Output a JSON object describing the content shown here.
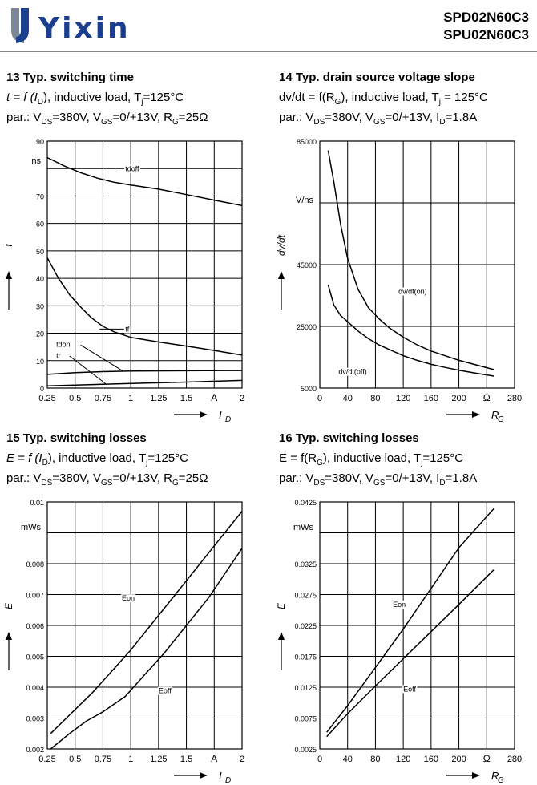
{
  "header": {
    "logo_text": "Yixin",
    "part_numbers": [
      "SPD02N60C3",
      "SPU02N60C3"
    ],
    "brand_color": "#1b3f8f"
  },
  "panels": [
    {
      "title": "13 Typ. switching time",
      "line1": "t = f (I",
      "line1_sub": "D",
      "line1_rest": "), inductive load, T",
      "line1_sub2": "j",
      "line1_end": "=125°C",
      "line2": "par.: V",
      "line2_sub": "DS",
      "line2_mid1": "=380V, V",
      "line2_sub2": "GS",
      "line2_mid2": "=0/+13V, R",
      "line2_sub3": "G",
      "line2_end": "=25Ω"
    },
    {
      "title": "14 Typ. drain source voltage slope",
      "line1": "dv/dt = f(R",
      "line1_sub": "G",
      "line1_rest": "), inductive load, T",
      "line1_sub2": "j",
      "line1_end": " = 125°C",
      "line2": "par.: V",
      "line2_sub": "DS",
      "line2_mid1": "=380V, V",
      "line2_sub2": "GS",
      "line2_mid2": "=0/+13V, I",
      "line2_sub3": "D",
      "line2_end": "=1.8A"
    },
    {
      "title": "15 Typ. switching losses",
      "line1": "E = f (I",
      "line1_sub": "D",
      "line1_rest": "), inductive load, T",
      "line1_sub2": "j",
      "line1_end": "=125°C",
      "line2": "par.: V",
      "line2_sub": "DS",
      "line2_mid1": "=380V, V",
      "line2_sub2": "GS",
      "line2_mid2": "=0/+13V, R",
      "line2_sub3": "G",
      "line2_end": "=25Ω"
    },
    {
      "title": "16 Typ. switching losses",
      "line1": "E = f(R",
      "line1_sub": "G",
      "line1_rest": "), inductive load, T",
      "line1_sub2": "j",
      "line1_end": "=125°C",
      "line2": "par.: V",
      "line2_sub": "DS",
      "line2_mid1": "=380V, V",
      "line2_sub2": "GS",
      "line2_mid2": "=0/+13V, I",
      "line2_sub3": "D",
      "line2_end": "=1.8A"
    }
  ],
  "chart_data": [
    {
      "type": "line",
      "ylabel": "t",
      "yunit": "ns",
      "xlabel": "I",
      "xlabel_sub": "D",
      "xunit": "A",
      "xlim": [
        0.25,
        2
      ],
      "ylim": [
        0,
        90
      ],
      "xticks": [
        0.25,
        0.5,
        0.75,
        1,
        1.25,
        1.5,
        2
      ],
      "xtick_labels": [
        "0.25",
        "0.5",
        "0.75",
        "1",
        "1.25",
        "1.5",
        "2"
      ],
      "xunit_at": 1.75,
      "yticks": [
        0,
        10,
        20,
        30,
        40,
        50,
        60,
        70,
        90
      ],
      "ytick_labels": [
        "0",
        "10",
        "20",
        "30",
        "40",
        "50",
        "60",
        "70",
        "90"
      ],
      "yunit_at": 83,
      "xgrid": [
        0.25,
        0.5,
        0.75,
        1,
        1.25,
        1.5,
        1.75,
        2
      ],
      "ygrid": [
        0,
        10,
        20,
        30,
        40,
        50,
        60,
        70,
        80,
        90
      ],
      "series": [
        {
          "name": "tdoff",
          "x": [
            0.25,
            0.4,
            0.55,
            0.7,
            0.85,
            1,
            1.25,
            1.5,
            1.75,
            2
          ],
          "y": [
            84,
            81,
            78.5,
            76.5,
            75,
            74,
            72.5,
            70.5,
            68.5,
            66.5
          ]
        },
        {
          "name": "tf",
          "x": [
            0.25,
            0.35,
            0.45,
            0.55,
            0.65,
            0.75,
            0.85,
            1,
            1.25,
            1.5,
            1.75,
            2
          ],
          "y": [
            47.5,
            40,
            34,
            29.5,
            25.5,
            22.5,
            20.5,
            18.5,
            16.8,
            15.3,
            13.7,
            12
          ]
        },
        {
          "name": "tdon",
          "x": [
            0.25,
            0.5,
            0.75,
            1,
            1.5,
            2
          ],
          "y": [
            5,
            5.6,
            6,
            6.2,
            6.3,
            6.4
          ]
        },
        {
          "name": "tr",
          "x": [
            0.25,
            0.5,
            0.75,
            1,
            1.5,
            2
          ],
          "y": [
            0.8,
            1.1,
            1.4,
            1.7,
            2.2,
            2.8
          ]
        }
      ],
      "annotations": [
        {
          "text": "tdoff",
          "x": 0.95,
          "y": 79
        },
        {
          "text": "tf",
          "x": 0.95,
          "y": 20.6
        },
        {
          "text": "tdon",
          "x": 0.33,
          "y": 15
        },
        {
          "text": "tr",
          "x": 0.33,
          "y": 11
        }
      ],
      "leaders": [
        {
          "x": [
            0.87,
            1.15
          ],
          "y": [
            80.2,
            80.2
          ]
        },
        {
          "x": [
            0.72,
            0.94
          ],
          "y": [
            21.5,
            21.5
          ]
        },
        {
          "x": [
            0.55,
            0.93
          ],
          "y": [
            15.7,
            6.2
          ]
        },
        {
          "x": [
            0.45,
            0.78
          ],
          "y": [
            11.7,
            1.4
          ]
        }
      ]
    },
    {
      "type": "line",
      "ylabel": "dv/dt",
      "yunit": "V/ns",
      "xlabel": "R",
      "xlabel_sub": "G",
      "xunit": "Ω",
      "xlim": [
        0,
        280
      ],
      "ylim": [
        5000,
        85000
      ],
      "xticks": [
        0,
        40,
        80,
        120,
        160,
        200,
        280
      ],
      "xtick_labels": [
        "0",
        "40",
        "80",
        "120",
        "160",
        "200",
        "280"
      ],
      "xunit_at": 240,
      "yticks": [
        5000,
        25000,
        45000,
        85000
      ],
      "ytick_labels": [
        "5000",
        "25000",
        "45000",
        "85000"
      ],
      "yunit_at": 66000,
      "xgrid": [
        0,
        40,
        80,
        120,
        160,
        200,
        240,
        280
      ],
      "ygrid": [
        5000,
        25000,
        45000,
        65000,
        85000
      ],
      "series": [
        {
          "name": "dv/dt(on)",
          "x": [
            12,
            20,
            30,
            40,
            55,
            70,
            85,
            100,
            120,
            140,
            160,
            180,
            200,
            225,
            250
          ],
          "y": [
            82000,
            72000,
            58000,
            47000,
            37000,
            31000,
            27500,
            24500,
            21500,
            19000,
            17000,
            15500,
            14000,
            12500,
            11000
          ]
        },
        {
          "name": "dv/dt(off)",
          "x": [
            12,
            20,
            30,
            40,
            55,
            70,
            85,
            100,
            120,
            140,
            160,
            180,
            200,
            225,
            250
          ],
          "y": [
            38500,
            32000,
            28500,
            26500,
            23500,
            21000,
            19000,
            17500,
            15500,
            14000,
            12700,
            11700,
            10800,
            9800,
            8900
          ]
        }
      ],
      "annotations": [
        {
          "text": "dv/dt(on)",
          "x": 113,
          "y": 35500
        },
        {
          "text": "dv/dt(off)",
          "x": 27,
          "y": 9500
        }
      ],
      "leaders": []
    },
    {
      "type": "line",
      "ylabel": "E",
      "yunit": "mWs",
      "xlabel": "I",
      "xlabel_sub": "D",
      "xunit": "A",
      "xlim": [
        0.25,
        2
      ],
      "ylim": [
        0.002,
        0.01
      ],
      "xticks": [
        0.25,
        0.5,
        0.75,
        1,
        1.25,
        1.5,
        2
      ],
      "xtick_labels": [
        "0.25",
        "0.5",
        "0.75",
        "1",
        "1.25",
        "1.5",
        "2"
      ],
      "xunit_at": 1.75,
      "yticks": [
        0.002,
        0.003,
        0.004,
        0.005,
        0.006,
        0.007,
        0.008,
        0.01
      ],
      "ytick_labels": [
        "0.002",
        "0.003",
        "0.004",
        "0.005",
        "0.006",
        "0.007",
        "0.008",
        "0.01"
      ],
      "yunit_at": 0.0092,
      "xgrid": [
        0.25,
        0.5,
        0.75,
        1,
        1.25,
        1.5,
        1.75,
        2
      ],
      "ygrid": [
        0.002,
        0.003,
        0.004,
        0.005,
        0.006,
        0.007,
        0.008,
        0.009,
        0.01
      ],
      "series": [
        {
          "name": "Eon",
          "x": [
            0.28,
            0.45,
            0.65,
            0.8,
            1,
            1.2,
            1.4,
            1.6,
            1.8,
            2
          ],
          "y": [
            0.0025,
            0.0031,
            0.0038,
            0.0044,
            0.0052,
            0.0061,
            0.007,
            0.0079,
            0.0088,
            0.0097
          ]
        },
        {
          "name": "Eoff",
          "x": [
            0.28,
            0.45,
            0.6,
            0.75,
            0.95,
            1.1,
            1.3,
            1.5,
            1.7,
            1.85,
            2
          ],
          "y": [
            0.002,
            0.0025,
            0.0029,
            0.0032,
            0.0037,
            0.0043,
            0.0051,
            0.006,
            0.0069,
            0.0077,
            0.0085
          ]
        }
      ],
      "annotations": [
        {
          "text": "Eon",
          "x": 0.92,
          "y": 0.0068
        },
        {
          "text": "Eoff",
          "x": 1.25,
          "y": 0.0038
        }
      ],
      "leaders": []
    },
    {
      "type": "line",
      "ylabel": "E",
      "yunit": "mWs",
      "xlabel": "R",
      "xlabel_sub": "G",
      "xunit": "Ω",
      "xlim": [
        0,
        280
      ],
      "ylim": [
        0.0025,
        0.0425
      ],
      "xticks": [
        0,
        40,
        80,
        120,
        160,
        200,
        280
      ],
      "xtick_labels": [
        "0",
        "40",
        "80",
        "120",
        "160",
        "200",
        "280"
      ],
      "xunit_at": 240,
      "yticks": [
        0.0025,
        0.0075,
        0.0125,
        0.0175,
        0.0225,
        0.0275,
        0.0325,
        0.0425
      ],
      "ytick_labels": [
        "0.0025",
        "0.0075",
        "0.0125",
        "0.0175",
        "0.0225",
        "0.0275",
        "0.0325",
        "0.0425"
      ],
      "yunit_at": 0.0385,
      "xgrid": [
        0,
        40,
        80,
        120,
        160,
        200,
        240,
        280
      ],
      "ygrid": [
        0.0025,
        0.0075,
        0.0125,
        0.0175,
        0.0225,
        0.0275,
        0.0325,
        0.0375,
        0.0425
      ],
      "series": [
        {
          "name": "Eon",
          "x": [
            10,
            40,
            80,
            120,
            160,
            200,
            250
          ],
          "y": [
            0.0052,
            0.0095,
            0.0157,
            0.0219,
            0.0285,
            0.0351,
            0.0414
          ]
        },
        {
          "name": "Eoff",
          "x": [
            10,
            40,
            80,
            120,
            160,
            200,
            250
          ],
          "y": [
            0.0045,
            0.0082,
            0.0127,
            0.0171,
            0.0215,
            0.0259,
            0.0315
          ]
        }
      ],
      "annotations": [
        {
          "text": "Eon",
          "x": 105,
          "y": 0.0255
        },
        {
          "text": "Eoff",
          "x": 120,
          "y": 0.0118
        }
      ],
      "leaders": []
    }
  ]
}
